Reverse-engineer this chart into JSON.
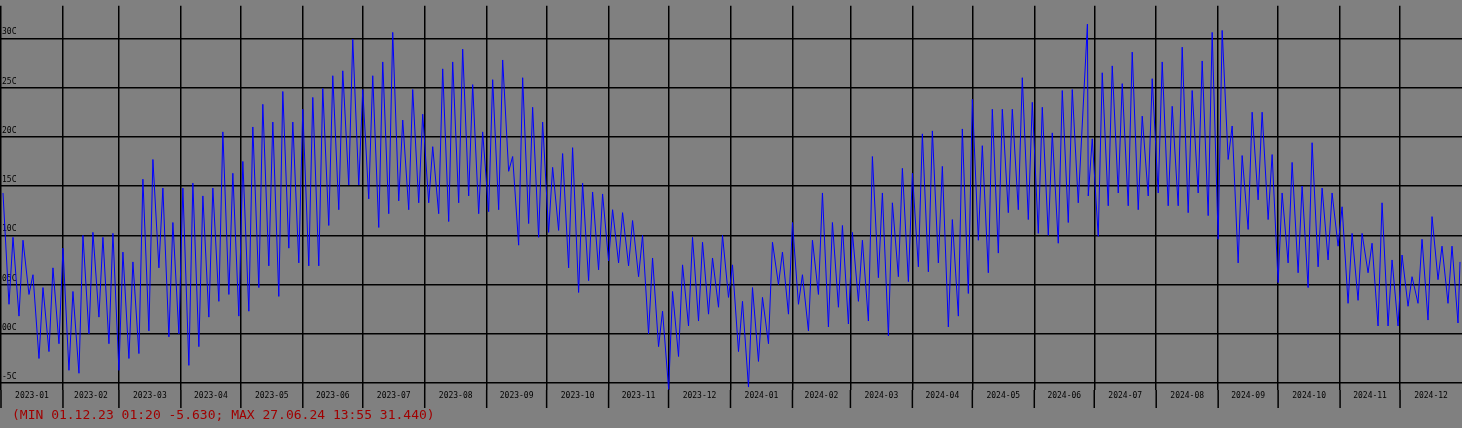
{
  "chart_data": {
    "type": "line",
    "color": "#0000ff",
    "grid": true,
    "xlim": [
      "2023-01-01",
      "2025-01-01"
    ],
    "ylim": [
      -5.7,
      33.3
    ],
    "yticks": [
      {
        "value": 30,
        "label": "30C"
      },
      {
        "value": 25,
        "label": "25C"
      },
      {
        "value": 20,
        "label": "20C"
      },
      {
        "value": 15,
        "label": "15C"
      },
      {
        "value": 10,
        "label": "10C"
      },
      {
        "value": 5,
        "label": "05C"
      },
      {
        "value": 0,
        "label": "00C"
      },
      {
        "value": -5,
        "label": "-5C"
      }
    ],
    "xticks": [
      {
        "value": "2023-01-01",
        "label": null
      },
      {
        "value": "2023-01-16T12:00",
        "label": "2023-01"
      },
      {
        "value": "2023-02-01",
        "label": null
      },
      {
        "value": "2023-02-15",
        "label": "2023-02"
      },
      {
        "value": "2023-03-01",
        "label": null
      },
      {
        "value": "2023-03-16T12:00",
        "label": "2023-03"
      },
      {
        "value": "2023-04-01",
        "label": null
      },
      {
        "value": "2023-04-16",
        "label": "2023-04"
      },
      {
        "value": "2023-05-01",
        "label": null
      },
      {
        "value": "2023-05-16T12:00",
        "label": "2023-05"
      },
      {
        "value": "2023-06-01",
        "label": null
      },
      {
        "value": "2023-06-16",
        "label": "2023-06"
      },
      {
        "value": "2023-07-01",
        "label": null
      },
      {
        "value": "2023-07-16T12:00",
        "label": "2023-07"
      },
      {
        "value": "2023-08-01",
        "label": null
      },
      {
        "value": "2023-08-16T12:00",
        "label": "2023-08"
      },
      {
        "value": "2023-09-01",
        "label": null
      },
      {
        "value": "2023-09-16",
        "label": "2023-09"
      },
      {
        "value": "2023-10-01",
        "label": null
      },
      {
        "value": "2023-10-16T12:00",
        "label": "2023-10"
      },
      {
        "value": "2023-11-01",
        "label": null
      },
      {
        "value": "2023-11-16",
        "label": "2023-11"
      },
      {
        "value": "2023-12-01",
        "label": null
      },
      {
        "value": "2023-12-16T12:00",
        "label": "2023-12"
      },
      {
        "value": "2024-01-01",
        "label": null
      },
      {
        "value": "2024-01-16T12:00",
        "label": "2024-01"
      },
      {
        "value": "2024-02-01",
        "label": null
      },
      {
        "value": "2024-02-15T12:00",
        "label": "2024-02"
      },
      {
        "value": "2024-03-01",
        "label": null
      },
      {
        "value": "2024-03-16T12:00",
        "label": "2024-03"
      },
      {
        "value": "2024-04-01",
        "label": null
      },
      {
        "value": "2024-04-16",
        "label": "2024-04"
      },
      {
        "value": "2024-05-01",
        "label": null
      },
      {
        "value": "2024-05-16T12:00",
        "label": "2024-05"
      },
      {
        "value": "2024-06-01",
        "label": null
      },
      {
        "value": "2024-06-16",
        "label": "2024-06"
      },
      {
        "value": "2024-07-01",
        "label": null
      },
      {
        "value": "2024-07-16T12:00",
        "label": "2024-07"
      },
      {
        "value": "2024-08-01",
        "label": null
      },
      {
        "value": "2024-08-16T12:00",
        "label": "2024-08"
      },
      {
        "value": "2024-09-01",
        "label": null
      },
      {
        "value": "2024-09-16",
        "label": "2024-09"
      },
      {
        "value": "2024-10-01",
        "label": null
      },
      {
        "value": "2024-10-16T12:00",
        "label": "2024-10"
      },
      {
        "value": "2024-11-01",
        "label": null
      },
      {
        "value": "2024-11-16",
        "label": "2024-11"
      },
      {
        "value": "2024-12-01",
        "label": null
      },
      {
        "value": "2024-12-16T12:00",
        "label": "2024-12"
      }
    ],
    "x": [
      "2023-01-02",
      "2023-01-05",
      "2023-01-07",
      "2023-01-10",
      "2023-01-12",
      "2023-01-15",
      "2023-01-17",
      "2023-01-20",
      "2023-01-22",
      "2023-01-25",
      "2023-01-27",
      "2023-01-30",
      "2023-02-01",
      "2023-02-04",
      "2023-02-06",
      "2023-02-09",
      "2023-02-11",
      "2023-02-14",
      "2023-02-16",
      "2023-02-19",
      "2023-02-21",
      "2023-02-24",
      "2023-02-26",
      "2023-03-01",
      "2023-03-03",
      "2023-03-06",
      "2023-03-08",
      "2023-03-11",
      "2023-03-13",
      "2023-03-16",
      "2023-03-18",
      "2023-03-21",
      "2023-03-23",
      "2023-03-26",
      "2023-03-28",
      "2023-03-31",
      "2023-04-02",
      "2023-04-05",
      "2023-04-07",
      "2023-04-10",
      "2023-04-12",
      "2023-04-15",
      "2023-04-17",
      "2023-04-20",
      "2023-04-22",
      "2023-04-25",
      "2023-04-27",
      "2023-04-30",
      "2023-05-02",
      "2023-05-05",
      "2023-05-07",
      "2023-05-10",
      "2023-05-12",
      "2023-05-15",
      "2023-05-17",
      "2023-05-20",
      "2023-05-22",
      "2023-05-25",
      "2023-05-27",
      "2023-05-30",
      "2023-06-01",
      "2023-06-04",
      "2023-06-06",
      "2023-06-09",
      "2023-06-11",
      "2023-06-14",
      "2023-06-16",
      "2023-06-19",
      "2023-06-21",
      "2023-06-24",
      "2023-06-26",
      "2023-06-29",
      "2023-07-01",
      "2023-07-04",
      "2023-07-06",
      "2023-07-09",
      "2023-07-11",
      "2023-07-14",
      "2023-07-16",
      "2023-07-19",
      "2023-07-21",
      "2023-07-24",
      "2023-07-26",
      "2023-07-29",
      "2023-07-31",
      "2023-08-03",
      "2023-08-05",
      "2023-08-08",
      "2023-08-10",
      "2023-08-13",
      "2023-08-15",
      "2023-08-18",
      "2023-08-20",
      "2023-08-23",
      "2023-08-25",
      "2023-08-28",
      "2023-08-30",
      "2023-09-02",
      "2023-09-04",
      "2023-09-07",
      "2023-09-09",
      "2023-09-12",
      "2023-09-14",
      "2023-09-17",
      "2023-09-19",
      "2023-09-22",
      "2023-09-24",
      "2023-09-27",
      "2023-09-29",
      "2023-10-02",
      "2023-10-04",
      "2023-10-07",
      "2023-10-09",
      "2023-10-12",
      "2023-10-14",
      "2023-10-17",
      "2023-10-19",
      "2023-10-22",
      "2023-10-24",
      "2023-10-27",
      "2023-10-29",
      "2023-11-01",
      "2023-11-03",
      "2023-11-06",
      "2023-11-08",
      "2023-11-11",
      "2023-11-13",
      "2023-11-16",
      "2023-11-18",
      "2023-11-21",
      "2023-11-23",
      "2023-11-26",
      "2023-11-28",
      "2023-12-01T01:20",
      "2023-12-03",
      "2023-12-06",
      "2023-12-08",
      "2023-12-11",
      "2023-12-13",
      "2023-12-16",
      "2023-12-18",
      "2023-12-21",
      "2023-12-23",
      "2023-12-26",
      "2023-12-28",
      "2023-12-31",
      "2024-01-02",
      "2024-01-05",
      "2024-01-07",
      "2024-01-10",
      "2024-01-12",
      "2024-01-15",
      "2024-01-17",
      "2024-01-20",
      "2024-01-22",
      "2024-01-25",
      "2024-01-27",
      "2024-01-30",
      "2024-02-01",
      "2024-02-04",
      "2024-02-06",
      "2024-02-09",
      "2024-02-11",
      "2024-02-14",
      "2024-02-16",
      "2024-02-19",
      "2024-02-21",
      "2024-02-24",
      "2024-02-26",
      "2024-02-29",
      "2024-03-02",
      "2024-03-05",
      "2024-03-07",
      "2024-03-10",
      "2024-03-12",
      "2024-03-15",
      "2024-03-17",
      "2024-03-20",
      "2024-03-22",
      "2024-03-25",
      "2024-03-27",
      "2024-03-30",
      "2024-04-01",
      "2024-04-04",
      "2024-04-06",
      "2024-04-09",
      "2024-04-11",
      "2024-04-14",
      "2024-04-16",
      "2024-04-19",
      "2024-04-21",
      "2024-04-24",
      "2024-04-26",
      "2024-04-29",
      "2024-05-01",
      "2024-05-04",
      "2024-05-06",
      "2024-05-09",
      "2024-05-11",
      "2024-05-14",
      "2024-05-16",
      "2024-05-19",
      "2024-05-21",
      "2024-05-24",
      "2024-05-26",
      "2024-05-29",
      "2024-05-31",
      "2024-06-03",
      "2024-06-05",
      "2024-06-08",
      "2024-06-10",
      "2024-06-13",
      "2024-06-15",
      "2024-06-18",
      "2024-06-20",
      "2024-06-23",
      "2024-06-27T13:55",
      "2024-06-28",
      "2024-06-30",
      "2024-07-03",
      "2024-07-05",
      "2024-07-08",
      "2024-07-10",
      "2024-07-13",
      "2024-07-15",
      "2024-07-18",
      "2024-07-20",
      "2024-07-23",
      "2024-07-25",
      "2024-07-28",
      "2024-07-30",
      "2024-08-02",
      "2024-08-04",
      "2024-08-07",
      "2024-08-09",
      "2024-08-12",
      "2024-08-14",
      "2024-08-17",
      "2024-08-19",
      "2024-08-22",
      "2024-08-24",
      "2024-08-27",
      "2024-08-29",
      "2024-09-01",
      "2024-09-03",
      "2024-09-06",
      "2024-09-08",
      "2024-09-11",
      "2024-09-13",
      "2024-09-16",
      "2024-09-18",
      "2024-09-21",
      "2024-09-23",
      "2024-09-26",
      "2024-09-28",
      "2024-10-01",
      "2024-10-03",
      "2024-10-06",
      "2024-10-08",
      "2024-10-11",
      "2024-10-13",
      "2024-10-16",
      "2024-10-18",
      "2024-10-21",
      "2024-10-23",
      "2024-10-26",
      "2024-10-28",
      "2024-10-31",
      "2024-11-02",
      "2024-11-05",
      "2024-11-07",
      "2024-11-10",
      "2024-11-12",
      "2024-11-15",
      "2024-11-17",
      "2024-11-20",
      "2024-11-22",
      "2024-11-25",
      "2024-11-27",
      "2024-11-30",
      "2024-12-02",
      "2024-12-05",
      "2024-12-07",
      "2024-12-10",
      "2024-12-12",
      "2024-12-15",
      "2024-12-17",
      "2024-12-20",
      "2024-12-22",
      "2024-12-25",
      "2024-12-27",
      "2024-12-30",
      "2024-12-31"
    ],
    "values": [
      14.3,
      3.0,
      9.8,
      1.8,
      9.5,
      4.0,
      6.0,
      -2.5,
      4.7,
      -1.8,
      6.7,
      -1.0,
      8.7,
      -3.7,
      4.3,
      -4.0,
      10.0,
      0.0,
      10.3,
      1.7,
      9.8,
      -1.0,
      10.2,
      -3.7,
      8.3,
      -2.5,
      7.3,
      -2.0,
      15.7,
      0.3,
      17.7,
      6.7,
      14.8,
      -0.3,
      11.3,
      0.0,
      14.8,
      -3.2,
      15.3,
      -1.3,
      14.0,
      1.7,
      14.8,
      3.3,
      20.5,
      4.0,
      16.3,
      1.8,
      17.5,
      2.3,
      21.0,
      4.7,
      23.3,
      6.9,
      21.5,
      3.8,
      24.6,
      8.7,
      21.5,
      7.2,
      22.8,
      6.9,
      24.0,
      6.9,
      24.9,
      11.0,
      26.2,
      12.6,
      26.7,
      15.1,
      29.9,
      15.1,
      24.8,
      13.7,
      26.2,
      10.8,
      27.6,
      12.2,
      30.6,
      13.5,
      21.7,
      12.6,
      24.8,
      13.3,
      22.3,
      13.3,
      19.0,
      12.2,
      26.9,
      11.4,
      27.6,
      13.3,
      28.9,
      14.0,
      25.3,
      12.2,
      20.5,
      12.4,
      25.8,
      12.6,
      27.8,
      16.5,
      18.0,
      9.0,
      26.0,
      11.2,
      23.0,
      9.8,
      21.5,
      10.3,
      16.9,
      10.5,
      18.3,
      6.7,
      18.9,
      4.2,
      15.3,
      5.4,
      14.4,
      6.5,
      14.2,
      7.4,
      12.6,
      7.2,
      12.3,
      6.9,
      11.5,
      5.8,
      10.0,
      0.0,
      7.7,
      -1.3,
      2.3,
      -5.63,
      4.3,
      -2.3,
      7.0,
      0.8,
      9.8,
      1.3,
      9.3,
      2.0,
      7.7,
      2.7,
      10.0,
      3.7,
      7.0,
      -1.8,
      3.3,
      -5.4,
      4.7,
      -2.8,
      3.7,
      -1.0,
      9.3,
      5.0,
      8.3,
      2.0,
      11.3,
      3.0,
      6.0,
      0.3,
      9.5,
      4.0,
      14.3,
      0.7,
      11.3,
      2.7,
      11.0,
      1.0,
      10.3,
      3.3,
      9.5,
      1.3,
      18.0,
      5.7,
      14.3,
      -0.2,
      13.3,
      5.8,
      16.8,
      5.3,
      16.3,
      6.8,
      20.3,
      6.3,
      20.6,
      7.2,
      17.0,
      0.7,
      11.6,
      1.8,
      20.8,
      4.1,
      23.8,
      9.5,
      19.1,
      6.2,
      22.8,
      8.2,
      22.8,
      12.3,
      22.8,
      12.6,
      26.0,
      11.6,
      23.5,
      10.2,
      23.0,
      10.0,
      20.4,
      9.2,
      24.7,
      11.3,
      24.8,
      13.3,
      31.44,
      14.0,
      19.8,
      9.9,
      26.5,
      13.0,
      27.2,
      14.3,
      25.4,
      13.0,
      28.6,
      12.6,
      22.1,
      14.0,
      25.9,
      14.3,
      27.6,
      13.0,
      23.1,
      13.0,
      29.1,
      12.3,
      24.7,
      14.3,
      27.7,
      12.0,
      30.6,
      9.6,
      30.8,
      17.7,
      21.1,
      7.2,
      18.1,
      10.6,
      22.5,
      13.6,
      22.5,
      11.6,
      18.2,
      5.2,
      14.3,
      7.2,
      17.4,
      6.2,
      15.0,
      4.7,
      19.4,
      6.8,
      14.8,
      7.5,
      14.3,
      8.9,
      12.9,
      3.1,
      10.2,
      3.4,
      10.2,
      6.2,
      9.2,
      0.8,
      13.3,
      0.8,
      7.5,
      0.8,
      8.0,
      2.8,
      5.8,
      3.1,
      9.6,
      1.4,
      11.9,
      5.5,
      8.9,
      3.1,
      8.9,
      1.1,
      7.3
    ],
    "annotations": [
      "(MIN 01.12.23 01:20 -5.630; MAX 27.06.24 13:55 31.440)"
    ]
  }
}
